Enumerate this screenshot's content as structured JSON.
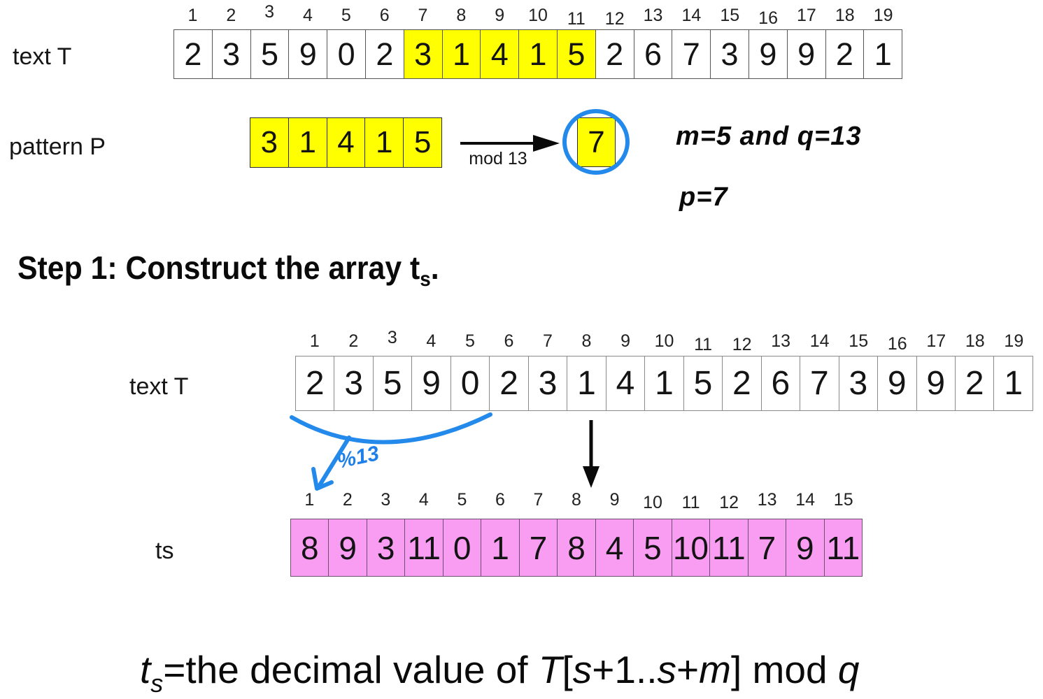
{
  "colors": {
    "highlight_yellow": "#FFFF00",
    "ts_pink": "#F99DF2",
    "annotation_blue": "#2389EA"
  },
  "top_section": {
    "text_label": "text T",
    "pattern_label": "pattern P",
    "indices": [
      1,
      2,
      3,
      4,
      5,
      6,
      7,
      8,
      9,
      10,
      11,
      12,
      13,
      14,
      15,
      16,
      17,
      18,
      19
    ],
    "text_values": [
      2,
      3,
      5,
      9,
      0,
      2,
      3,
      1,
      4,
      1,
      5,
      2,
      6,
      7,
      3,
      9,
      9,
      2,
      1
    ],
    "highlight_cells": [
      7,
      8,
      9,
      10,
      11
    ],
    "pattern_values": [
      3,
      1,
      4,
      1,
      5
    ],
    "mod_label": "mod 13",
    "hash_value": "7",
    "params_line1": "m=5 and q=13",
    "params_line2": "p=7"
  },
  "step1": {
    "heading_prefix": "Step 1: Construct the array t",
    "heading_sub": "s",
    "heading_suffix": "."
  },
  "middle_section": {
    "text_label": "text T",
    "indices": [
      1,
      2,
      3,
      4,
      5,
      6,
      7,
      8,
      9,
      10,
      11,
      12,
      13,
      14,
      15,
      16,
      17,
      18,
      19
    ],
    "text_values": [
      2,
      3,
      5,
      9,
      0,
      2,
      3,
      1,
      4,
      1,
      5,
      2,
      6,
      7,
      3,
      9,
      9,
      2,
      1
    ],
    "mod_annotation": "%13"
  },
  "ts_section": {
    "label": "ts",
    "indices": [
      1,
      2,
      3,
      4,
      5,
      6,
      7,
      8,
      9,
      10,
      11,
      12,
      13,
      14,
      15
    ],
    "values": [
      8,
      9,
      3,
      11,
      0,
      1,
      7,
      8,
      4,
      5,
      10,
      11,
      7,
      9,
      11
    ]
  },
  "formula": {
    "t": "t",
    "t_sub": "s",
    "part1": "=the decimal value of ",
    "T": "T",
    "open_bracket": "[",
    "s1": "s",
    "part2": "+1..",
    "s2": "s",
    "part3": "+",
    "m": "m",
    "part4": "] mod ",
    "q": "q"
  }
}
